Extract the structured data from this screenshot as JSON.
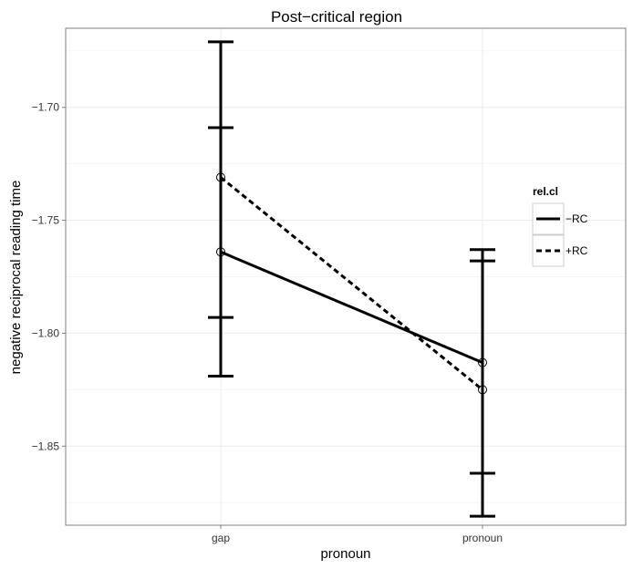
{
  "chart_data": {
    "type": "line",
    "title": "Post−critical region",
    "xlabel": "pronoun",
    "ylabel": "negative reciprocal reading time",
    "categories": [
      "gap",
      "pronoun"
    ],
    "ylim": [
      -1.885,
      -1.665
    ],
    "y_ticks": [
      -1.7,
      -1.75,
      -1.8,
      -1.85
    ],
    "y_tick_labels": [
      "−1.70",
      "−1.75",
      "−1.80",
      "−1.85"
    ],
    "grid": true,
    "legend": {
      "title": "rel.cl",
      "position": "right"
    },
    "series": [
      {
        "name": "−RC",
        "line_style": "solid",
        "values": [
          -1.764,
          -1.813
        ],
        "error_low": [
          -1.819,
          -1.862
        ],
        "error_high": [
          -1.709,
          -1.763
        ]
      },
      {
        "name": "+RC",
        "line_style": "dashed",
        "values": [
          -1.731,
          -1.825
        ],
        "error_low": [
          -1.793,
          -1.881
        ],
        "error_high": [
          -1.671,
          -1.768
        ]
      }
    ],
    "colors": {
      "line": "#000000",
      "panel_border": "#7f7f7f",
      "grid_major": "#ebebeb",
      "grid_minor": "#f5f5f5",
      "legend_border": "#cccccc"
    }
  }
}
